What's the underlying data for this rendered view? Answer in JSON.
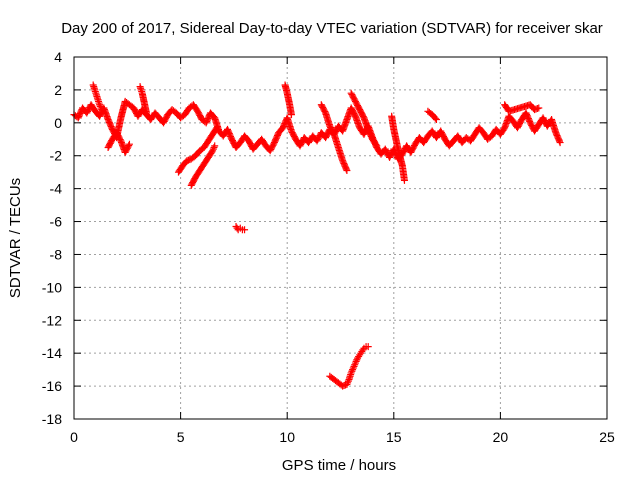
{
  "chart_data": {
    "type": "scatter",
    "title": "Day 200 of 2017, Sidereal Day-to-day VTEC variation (SDTVAR) for receiver skar",
    "xlabel": "GPS time / hours",
    "ylabel": "SDTVAR / TECUs",
    "xlim": [
      0,
      25
    ],
    "ylim": [
      -18,
      4
    ],
    "xticks": [
      0,
      5,
      10,
      15,
      20,
      25
    ],
    "yticks": [
      4,
      2,
      0,
      -2,
      -4,
      -6,
      -8,
      -10,
      -12,
      -14,
      -16,
      -18
    ],
    "xtick_labels": [
      "0",
      "5",
      "10",
      "15",
      "20",
      "25"
    ],
    "ytick_labels": [
      "4",
      "2",
      "0",
      "-2",
      "-4",
      "-6",
      "-8",
      "-10",
      "-12",
      "-14",
      "-16",
      "-18"
    ],
    "grid": true,
    "marker": "+",
    "marker_color": "#ff0000",
    "series": [
      {
        "name": "main-trace",
        "points": [
          [
            0.0,
            0.5
          ],
          [
            0.2,
            0.3
          ],
          [
            0.4,
            0.9
          ],
          [
            0.6,
            0.6
          ],
          [
            0.8,
            1.1
          ],
          [
            1.0,
            0.7
          ],
          [
            1.2,
            0.4
          ],
          [
            1.4,
            0.9
          ],
          [
            1.6,
            0.2
          ],
          [
            1.8,
            -0.4
          ],
          [
            2.0,
            -0.9
          ],
          [
            2.2,
            0.3
          ],
          [
            2.4,
            1.3
          ],
          [
            2.6,
            1.1
          ],
          [
            2.8,
            0.9
          ],
          [
            3.0,
            0.4
          ],
          [
            3.2,
            0.8
          ],
          [
            3.4,
            0.5
          ],
          [
            3.6,
            0.2
          ],
          [
            3.8,
            0.6
          ],
          [
            4.0,
            0.3
          ],
          [
            4.2,
            0.0
          ],
          [
            4.4,
            0.5
          ],
          [
            4.6,
            0.8
          ],
          [
            4.8,
            0.6
          ],
          [
            5.0,
            0.3
          ],
          [
            5.2,
            0.5
          ],
          [
            5.4,
            0.9
          ],
          [
            5.6,
            1.1
          ],
          [
            5.8,
            0.7
          ],
          [
            6.0,
            0.2
          ],
          [
            6.2,
            0.0
          ],
          [
            6.4,
            0.6
          ],
          [
            6.6,
            0.3
          ],
          [
            6.8,
            -0.5
          ],
          [
            7.0,
            -0.8
          ],
          [
            7.2,
            -0.4
          ],
          [
            7.4,
            -1.0
          ],
          [
            7.6,
            -1.5
          ],
          [
            7.8,
            -1.2
          ],
          [
            8.0,
            -0.8
          ],
          [
            8.2,
            -1.1
          ],
          [
            8.4,
            -1.6
          ],
          [
            8.6,
            -1.3
          ],
          [
            8.8,
            -1.0
          ],
          [
            9.0,
            -1.4
          ],
          [
            9.2,
            -1.7
          ],
          [
            9.4,
            -1.2
          ],
          [
            9.6,
            -0.6
          ],
          [
            9.8,
            -0.3
          ],
          [
            10.0,
            0.3
          ],
          [
            10.2,
            -0.5
          ],
          [
            10.4,
            -1.0
          ],
          [
            10.6,
            -1.4
          ],
          [
            10.8,
            -0.9
          ],
          [
            11.0,
            -1.2
          ],
          [
            11.2,
            -0.8
          ],
          [
            11.4,
            -1.1
          ],
          [
            11.6,
            -0.6
          ],
          [
            11.8,
            -0.9
          ],
          [
            12.0,
            -0.4
          ],
          [
            12.2,
            -0.7
          ],
          [
            12.4,
            -0.2
          ],
          [
            12.6,
            -0.5
          ],
          [
            12.8,
            0.2
          ],
          [
            13.0,
            0.9
          ],
          [
            13.2,
            0.4
          ],
          [
            13.4,
            -0.3
          ],
          [
            13.6,
            -0.7
          ],
          [
            13.8,
            -0.2
          ],
          [
            14.0,
            -0.9
          ],
          [
            14.2,
            -1.5
          ],
          [
            14.4,
            -1.9
          ],
          [
            14.6,
            -1.6
          ],
          [
            14.8,
            -2.1
          ],
          [
            15.0,
            -1.6
          ],
          [
            15.2,
            -2.2
          ],
          [
            15.4,
            -1.9
          ],
          [
            15.6,
            -1.4
          ],
          [
            15.8,
            -1.8
          ],
          [
            16.0,
            -1.3
          ],
          [
            16.2,
            -0.9
          ],
          [
            16.4,
            -1.2
          ],
          [
            16.6,
            -0.8
          ],
          [
            16.8,
            -0.5
          ],
          [
            17.0,
            -0.9
          ],
          [
            17.2,
            -0.5
          ],
          [
            17.4,
            -1.0
          ],
          [
            17.6,
            -1.4
          ],
          [
            17.8,
            -1.1
          ],
          [
            18.0,
            -0.8
          ],
          [
            18.2,
            -1.2
          ],
          [
            18.4,
            -0.9
          ],
          [
            18.6,
            -1.1
          ],
          [
            18.8,
            -0.7
          ],
          [
            19.0,
            -0.3
          ],
          [
            19.2,
            -0.6
          ],
          [
            19.4,
            -1.0
          ],
          [
            19.6,
            -0.8
          ],
          [
            19.8,
            -0.4
          ],
          [
            20.0,
            -0.7
          ],
          [
            20.2,
            -0.3
          ],
          [
            20.4,
            0.4
          ],
          [
            20.6,
            0.1
          ],
          [
            20.8,
            -0.3
          ],
          [
            21.0,
            0.2
          ],
          [
            21.2,
            0.6
          ],
          [
            21.4,
            0.0
          ],
          [
            21.6,
            -0.5
          ],
          [
            21.8,
            -0.1
          ],
          [
            22.0,
            0.3
          ],
          [
            22.2,
            -0.2
          ],
          [
            22.4,
            0.2
          ],
          [
            22.6,
            -0.6
          ],
          [
            22.8,
            -1.2
          ]
        ]
      },
      {
        "name": "segment-early-dip",
        "points": [
          [
            1.6,
            -1.5
          ],
          [
            1.8,
            -1.0
          ],
          [
            2.0,
            -0.6
          ],
          [
            2.2,
            -1.1
          ],
          [
            2.4,
            -1.8
          ],
          [
            2.6,
            -1.3
          ]
        ]
      },
      {
        "name": "segment-spike-1h",
        "points": [
          [
            0.9,
            2.3
          ],
          [
            1.0,
            1.9
          ],
          [
            1.1,
            1.5
          ],
          [
            1.2,
            1.1
          ],
          [
            1.3,
            0.8
          ]
        ]
      },
      {
        "name": "segment-spike-3h",
        "points": [
          [
            3.1,
            2.2
          ],
          [
            3.2,
            1.8
          ],
          [
            3.3,
            1.2
          ],
          [
            3.4,
            0.6
          ]
        ]
      },
      {
        "name": "segment-5h-descent",
        "points": [
          [
            4.9,
            -3.0
          ],
          [
            5.1,
            -2.6
          ],
          [
            5.3,
            -2.3
          ],
          [
            5.5,
            -2.2
          ],
          [
            5.7,
            -2.0
          ],
          [
            5.9,
            -1.7
          ],
          [
            6.1,
            -1.5
          ],
          [
            6.3,
            -1.1
          ],
          [
            6.5,
            -0.7
          ],
          [
            6.7,
            -0.3
          ]
        ]
      },
      {
        "name": "segment-5h-lower",
        "points": [
          [
            5.5,
            -3.8
          ],
          [
            5.7,
            -3.3
          ],
          [
            5.9,
            -2.9
          ],
          [
            6.1,
            -2.5
          ],
          [
            6.3,
            -2.1
          ],
          [
            6.5,
            -1.7
          ],
          [
            6.6,
            -1.4
          ]
        ]
      },
      {
        "name": "segment-10h-spike",
        "points": [
          [
            9.9,
            2.3
          ],
          [
            10.0,
            1.8
          ],
          [
            10.1,
            1.2
          ],
          [
            10.2,
            0.5
          ]
        ]
      },
      {
        "name": "segment-12h-dip",
        "points": [
          [
            11.6,
            1.1
          ],
          [
            11.8,
            0.6
          ],
          [
            12.0,
            -0.2
          ],
          [
            12.2,
            -0.7
          ],
          [
            12.4,
            -1.5
          ],
          [
            12.6,
            -2.3
          ],
          [
            12.8,
            -2.9
          ]
        ]
      },
      {
        "name": "segment-13h-rise",
        "points": [
          [
            13.0,
            1.8
          ],
          [
            13.2,
            1.3
          ],
          [
            13.4,
            0.8
          ],
          [
            13.6,
            0.3
          ],
          [
            13.8,
            -0.4
          ],
          [
            14.0,
            -1.0
          ],
          [
            14.2,
            -1.4
          ]
        ]
      },
      {
        "name": "segment-15h-drop",
        "points": [
          [
            14.9,
            0.4
          ],
          [
            15.0,
            -0.4
          ],
          [
            15.2,
            -1.6
          ],
          [
            15.4,
            -2.6
          ],
          [
            15.5,
            -3.5
          ]
        ]
      },
      {
        "name": "segment-16h-hump",
        "points": [
          [
            16.6,
            0.7
          ],
          [
            16.8,
            0.5
          ],
          [
            17.0,
            0.2
          ]
        ]
      },
      {
        "name": "segment-21h-peak",
        "points": [
          [
            20.2,
            1.1
          ],
          [
            20.4,
            0.7
          ],
          [
            21.4,
            1.1
          ],
          [
            21.6,
            0.8
          ],
          [
            21.8,
            0.9
          ]
        ]
      },
      {
        "name": "cluster-8h",
        "points": [
          [
            7.6,
            -6.3
          ],
          [
            7.7,
            -6.5
          ],
          [
            7.8,
            -6.4
          ],
          [
            7.9,
            -6.5
          ],
          [
            8.0,
            -6.5
          ]
        ]
      },
      {
        "name": "cluster-13h",
        "points": [
          [
            12.0,
            -15.4
          ],
          [
            12.2,
            -15.6
          ],
          [
            12.4,
            -15.8
          ],
          [
            12.6,
            -16.0
          ],
          [
            12.8,
            -15.9
          ],
          [
            12.9,
            -15.6
          ],
          [
            13.0,
            -15.2
          ],
          [
            13.1,
            -14.9
          ],
          [
            13.2,
            -14.6
          ],
          [
            13.3,
            -14.3
          ],
          [
            13.4,
            -14.1
          ],
          [
            13.5,
            -13.9
          ],
          [
            13.6,
            -13.7
          ],
          [
            13.7,
            -13.6
          ],
          [
            13.8,
            -13.6
          ]
        ]
      }
    ]
  }
}
